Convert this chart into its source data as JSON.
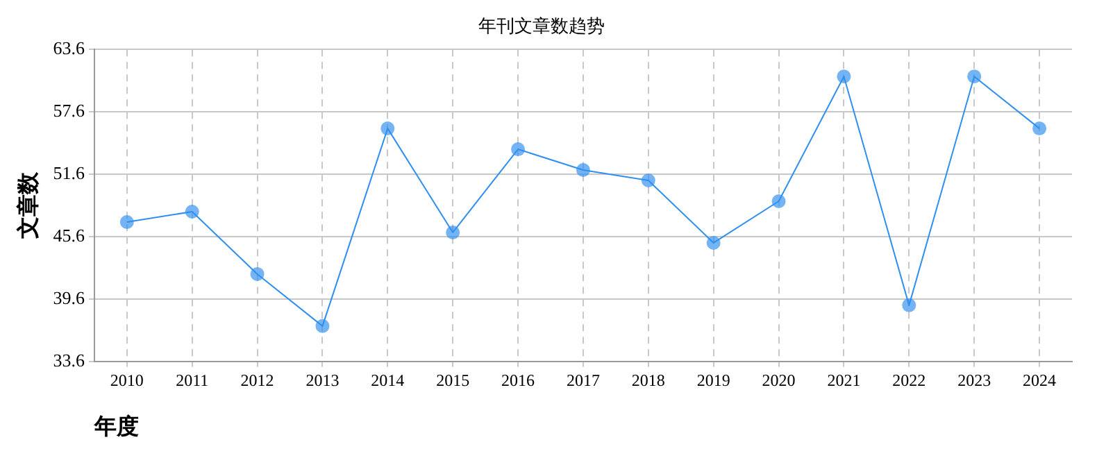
{
  "chart_data": {
    "type": "line",
    "title": "年刊文章数趋势",
    "xlabel": "年度",
    "ylabel": "文章数",
    "categories": [
      "2010",
      "2011",
      "2012",
      "2013",
      "2014",
      "2015",
      "2016",
      "2017",
      "2018",
      "2019",
      "2020",
      "2021",
      "2022",
      "2023",
      "2024"
    ],
    "series": [
      {
        "color": "#2f8ff0",
        "values": [
          47,
          48,
          42,
          37,
          56,
          46,
          54,
          52,
          51,
          45,
          49,
          61,
          39,
          61,
          56
        ]
      }
    ],
    "ylim": [
      33.6,
      63.6
    ],
    "yticks": [
      33.6,
      39.6,
      45.6,
      51.6,
      57.6,
      63.6
    ],
    "grid": true,
    "legend": false,
    "marker": "circle",
    "line_style": "solid"
  }
}
